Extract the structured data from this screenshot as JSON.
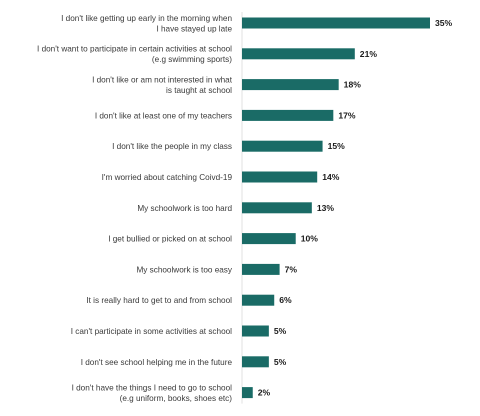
{
  "chart_data": {
    "type": "bar",
    "orientation": "horizontal",
    "title": "",
    "xlabel": "",
    "ylabel": "",
    "xlim": [
      0,
      35
    ],
    "grid": false,
    "legend": "none",
    "bar_color": "#1a6b66",
    "categories": [
      [
        "I don't like getting up early in the morning when",
        "I have stayed up late"
      ],
      [
        "I don't want to participate in certain activities at school",
        "(e.g swimming sports)"
      ],
      [
        "I don't like or am not interested in what",
        "is taught at school"
      ],
      [
        "I don't like at least one of my teachers"
      ],
      [
        "I don't like the people in my class"
      ],
      [
        "I'm worried about catching Coivd-19"
      ],
      [
        "My schoolwork is too hard"
      ],
      [
        "I get bullied or picked on at school"
      ],
      [
        "My schoolwork is too easy"
      ],
      [
        "It is really hard to get to and from school"
      ],
      [
        "I can't participate in some activities at school"
      ],
      [
        "I don't see school helping me in the future"
      ],
      [
        "I don't have the things I need to go to school",
        "(e.g uniform, books, shoes etc)"
      ]
    ],
    "values": [
      35,
      21,
      18,
      17,
      15,
      14,
      13,
      10,
      7,
      6,
      5,
      5,
      2
    ],
    "value_labels": [
      "35%",
      "21%",
      "18%",
      "17%",
      "15%",
      "14%",
      "13%",
      "10%",
      "7%",
      "6%",
      "5%",
      "5%",
      "2%"
    ]
  }
}
